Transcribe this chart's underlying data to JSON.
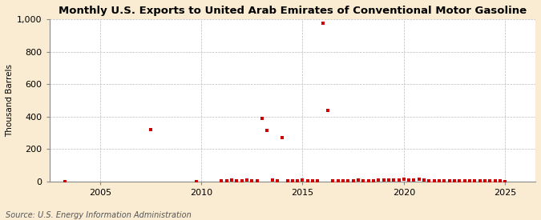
{
  "title": "Monthly U.S. Exports to United Arab Emirates of Conventional Motor Gasoline",
  "ylabel": "Thousand Barrels",
  "source": "Source: U.S. Energy Information Administration",
  "background_color": "#faecd2",
  "plot_background_color": "#ffffff",
  "point_color": "#cc0000",
  "ylim": [
    0,
    1000
  ],
  "yticks": [
    0,
    200,
    400,
    600,
    800,
    1000
  ],
  "xlim": [
    2002.5,
    2026.5
  ],
  "xticks": [
    2005,
    2010,
    2015,
    2020,
    2025
  ],
  "data_points": [
    [
      2003.25,
      2
    ],
    [
      2007.5,
      320
    ],
    [
      2009.75,
      2
    ],
    [
      2011.0,
      4
    ],
    [
      2011.25,
      6
    ],
    [
      2011.5,
      8
    ],
    [
      2011.75,
      5
    ],
    [
      2012.0,
      6
    ],
    [
      2012.25,
      10
    ],
    [
      2012.5,
      7
    ],
    [
      2012.75,
      5
    ],
    [
      2013.0,
      390
    ],
    [
      2013.25,
      315
    ],
    [
      2013.5,
      8
    ],
    [
      2013.75,
      6
    ],
    [
      2014.0,
      270
    ],
    [
      2014.25,
      6
    ],
    [
      2014.5,
      5
    ],
    [
      2014.75,
      4
    ],
    [
      2015.0,
      8
    ],
    [
      2015.25,
      4
    ],
    [
      2015.5,
      5
    ],
    [
      2015.75,
      4
    ],
    [
      2016.0,
      975
    ],
    [
      2016.25,
      440
    ],
    [
      2016.5,
      6
    ],
    [
      2016.75,
      5
    ],
    [
      2017.0,
      6
    ],
    [
      2017.25,
      5
    ],
    [
      2017.5,
      7
    ],
    [
      2017.75,
      8
    ],
    [
      2018.0,
      5
    ],
    [
      2018.25,
      6
    ],
    [
      2018.5,
      7
    ],
    [
      2018.75,
      8
    ],
    [
      2019.0,
      10
    ],
    [
      2019.25,
      8
    ],
    [
      2019.5,
      12
    ],
    [
      2019.75,
      10
    ],
    [
      2020.0,
      15
    ],
    [
      2020.25,
      12
    ],
    [
      2020.5,
      10
    ],
    [
      2020.75,
      14
    ],
    [
      2021.0,
      8
    ],
    [
      2021.25,
      6
    ],
    [
      2021.5,
      7
    ],
    [
      2021.75,
      5
    ],
    [
      2022.0,
      6
    ],
    [
      2022.25,
      5
    ],
    [
      2022.5,
      4
    ],
    [
      2022.75,
      6
    ],
    [
      2023.0,
      5
    ],
    [
      2023.25,
      4
    ],
    [
      2023.5,
      3
    ],
    [
      2023.75,
      5
    ],
    [
      2024.0,
      3
    ],
    [
      2024.25,
      5
    ],
    [
      2024.5,
      4
    ],
    [
      2024.75,
      3
    ],
    [
      2025.0,
      2
    ]
  ]
}
